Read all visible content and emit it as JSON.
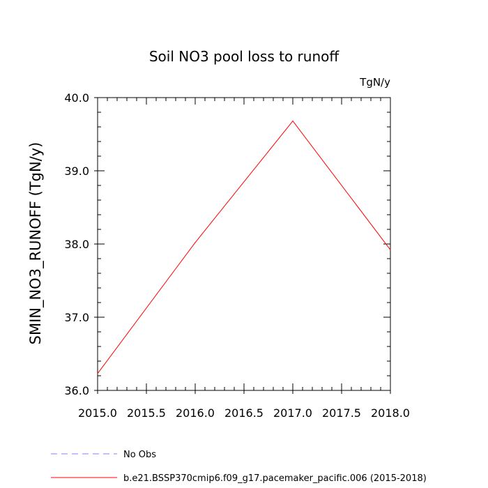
{
  "chart_data": {
    "type": "line",
    "title": "Soil NO3 pool loss to runoff",
    "units_label": "TgN/y",
    "ylabel": "SMIN_NO3_RUNOFF  (TgN/y)",
    "xlabel": "",
    "xlim": [
      2015.0,
      2018.0
    ],
    "ylim": [
      36.0,
      40.0
    ],
    "x_ticks": [
      "2015.0",
      "2015.5",
      "2016.0",
      "2016.5",
      "2017.0",
      "2017.5",
      "2018.0"
    ],
    "y_ticks": [
      "36.0",
      "37.0",
      "38.0",
      "39.0",
      "40.0"
    ],
    "grid": false,
    "legend_placement": "bottom",
    "series": [
      {
        "name": "b.e21.BSSP370cmip6.f09_g17.pacemaker_pacific.006 (2015-2018)",
        "color": "#ff0000",
        "style": "solid",
        "x": [
          2015,
          2016,
          2017,
          2018
        ],
        "y": [
          36.23,
          38.02,
          39.68,
          37.92
        ]
      },
      {
        "name": "No Obs",
        "color": "#8080ff",
        "style": "dashed",
        "x": [],
        "y": []
      }
    ]
  }
}
